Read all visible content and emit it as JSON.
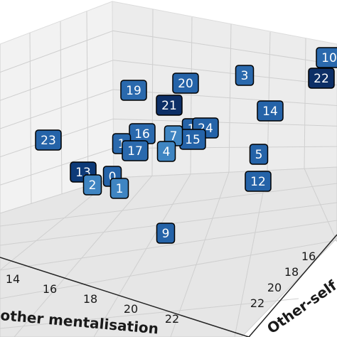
{
  "chart_data": {
    "type": "scatter",
    "title": "",
    "xlabel": "other mentalisation",
    "ylabel": "Other-self p",
    "x_ticks": [
      "14",
      "16",
      "18",
      "20",
      "22"
    ],
    "y_ticks": [
      "22",
      "20",
      "18",
      "16"
    ],
    "grid": true,
    "points": [
      {
        "label": "10",
        "color": "#2a69ad"
      },
      {
        "label": "22",
        "color": "#0d2f66"
      },
      {
        "label": "3",
        "color": "#2a69ad"
      },
      {
        "label": "20",
        "color": "#2563a8"
      },
      {
        "label": "19",
        "color": "#2a69ad"
      },
      {
        "label": "21",
        "color": "#0d2f66"
      },
      {
        "label": "14",
        "color": "#2563a8"
      },
      {
        "label": "1",
        "color": "#2563a8"
      },
      {
        "label": "24",
        "color": "#2563a8"
      },
      {
        "label": "15",
        "color": "#2563a8"
      },
      {
        "label": "16",
        "color": "#2a69ad"
      },
      {
        "label": "7",
        "color": "#3f85c2"
      },
      {
        "label": "1",
        "color": "#2a69ad"
      },
      {
        "label": "17",
        "color": "#2a69ad"
      },
      {
        "label": "4",
        "color": "#3f85c2"
      },
      {
        "label": "23",
        "color": "#2563a8"
      },
      {
        "label": "5",
        "color": "#2563a8"
      },
      {
        "label": "13",
        "color": "#0d3a78"
      },
      {
        "label": "2",
        "color": "#3f85c2"
      },
      {
        "label": "0",
        "color": "#2563a8"
      },
      {
        "label": "1",
        "color": "#3f85c2"
      },
      {
        "label": "12",
        "color": "#2563a8"
      },
      {
        "label": "9",
        "color": "#2563a8"
      }
    ]
  }
}
